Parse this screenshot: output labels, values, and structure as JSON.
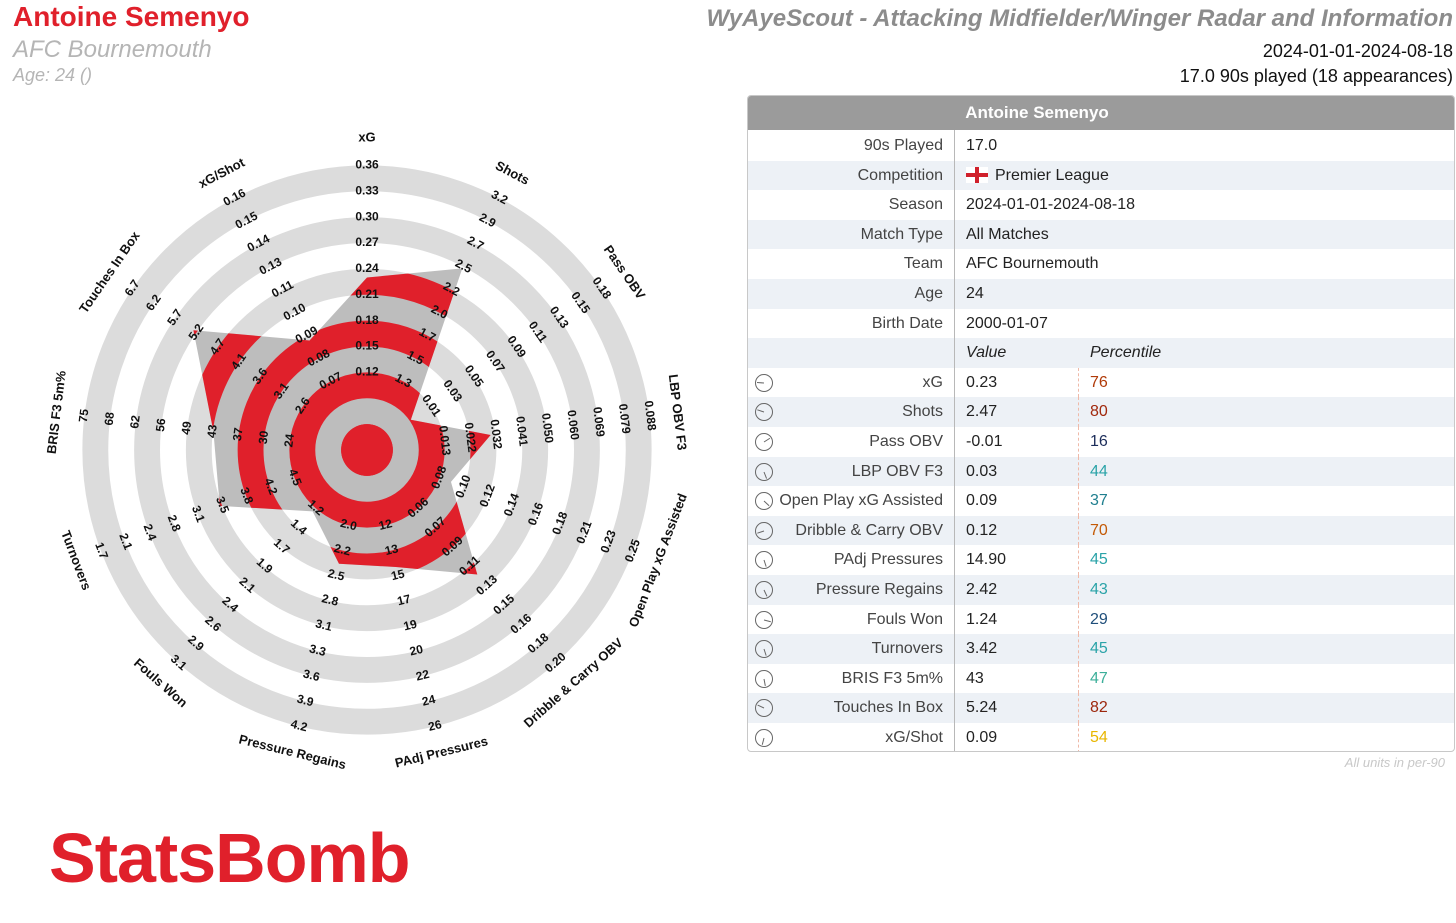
{
  "header": {
    "player": "Antoine Semenyo",
    "team": "AFC Bournemouth",
    "age": "Age: 24 ()",
    "title": "WyAyeScout - Attacking Midfielder/Winger Radar and Information",
    "dates": "2024-01-01-2024-08-18",
    "played": "17.0 90s played (18 appearances)"
  },
  "table": {
    "title": "Antoine Semenyo",
    "info": [
      [
        "90s Played",
        "17.0"
      ],
      [
        "Competition",
        "Premier League"
      ],
      [
        "Season",
        "2024-01-01-2024-08-18"
      ],
      [
        "Match Type",
        "All Matches"
      ],
      [
        "Team",
        "AFC Bournemouth"
      ],
      [
        "Age",
        "24"
      ],
      [
        "Birth Date",
        "2000-01-07"
      ]
    ],
    "value_header": "Value",
    "percentile_header": "Percentile",
    "footnote": "All units in per-90"
  },
  "chart_data": {
    "type": "radar",
    "color": "#e0202b",
    "fill": "#bdbdbd",
    "ring_color": "#dcdcdc",
    "categories": [
      "xG",
      "Shots",
      "Pass OBV",
      "LBP OBV F3",
      "Open Play xG Assisted",
      "Dribble & Carry OBV",
      "PAdj Pressures",
      "Pressure Regains",
      "Fouls Won",
      "Turnovers",
      "BRIS F3 5m%",
      "Touches In Box",
      "xG/Shot"
    ],
    "ticks": [
      [
        0.12,
        0.15,
        0.18,
        0.21,
        0.24,
        0.27,
        {
          "value": 0.3,
          "label": "0.30"
        },
        0.33,
        0.36
      ],
      [
        1.3,
        1.5,
        1.7,
        {
          "value": 2,
          "label": "2.0"
        },
        2.2,
        2.5,
        2.7,
        2.9,
        3.2
      ],
      [
        0.01,
        0.03,
        0.05,
        0.07,
        0.09,
        0.11,
        0.13,
        0.15,
        0.18
      ],
      [
        0.013,
        0.022,
        0.032,
        0.041,
        {
          "value": 0.05,
          "label": "0.050"
        },
        {
          "value": 0.06,
          "label": "0.060"
        },
        0.069,
        0.079,
        0.088
      ],
      [
        0.08,
        {
          "value": 0.1,
          "label": "0.10"
        },
        0.12,
        0.14,
        0.16,
        0.18,
        0.21,
        0.23,
        0.25
      ],
      [
        0.06,
        0.07,
        0.09,
        0.11,
        0.13,
        0.15,
        0.16,
        0.18,
        {
          "value": 0.2,
          "label": "0.20"
        }
      ],
      [
        12,
        13,
        15,
        17,
        19,
        20,
        22,
        24,
        26
      ],
      [
        {
          "value": 2,
          "label": "2.0"
        },
        2.2,
        2.5,
        2.8,
        3.1,
        3.3,
        3.6,
        3.9,
        4.2
      ],
      [
        1.2,
        1.4,
        1.7,
        1.9,
        2.1,
        2.4,
        2.6,
        2.9,
        3.1
      ],
      [
        4.5,
        4.2,
        3.8,
        3.5,
        3.1,
        2.8,
        2.4,
        2.1,
        1.7
      ],
      [
        24,
        30,
        37,
        43,
        49,
        56,
        62,
        68,
        75
      ],
      [
        2.6,
        3.1,
        3.6,
        4.1,
        4.7,
        5.2,
        5.7,
        6.2,
        6.7
      ],
      [
        0.07,
        0.08,
        0.09,
        {
          "value": 0.1,
          "label": "0.10"
        },
        0.11,
        0.13,
        0.14,
        0.15,
        0.16
      ]
    ],
    "values": [
      0.23,
      2.47,
      -0.01,
      0.03,
      0.09,
      0.12,
      14.9,
      2.42,
      1.24,
      3.42,
      43,
      5.24,
      0.09
    ],
    "value_labels": [
      "0.23",
      "2.47",
      "-0.01",
      "0.03",
      "0.09",
      "0.12",
      "14.90",
      "2.42",
      "1.24",
      "3.42",
      "43",
      "5.24",
      "0.09"
    ],
    "percentiles": [
      76,
      80,
      16,
      44,
      37,
      70,
      45,
      43,
      29,
      45,
      47,
      82,
      54
    ],
    "percentile_colors": [
      "#b03a08",
      "#a1280c",
      "#1c2d5a",
      "#2aa3a8",
      "#1f7f8f",
      "#c45a06",
      "#2aa3a8",
      "#2aa3a8",
      "#1f4e7a",
      "#2aa3a8",
      "#3caf9a",
      "#9c260c",
      "#e8b600"
    ]
  },
  "logo": "StatsBomb"
}
